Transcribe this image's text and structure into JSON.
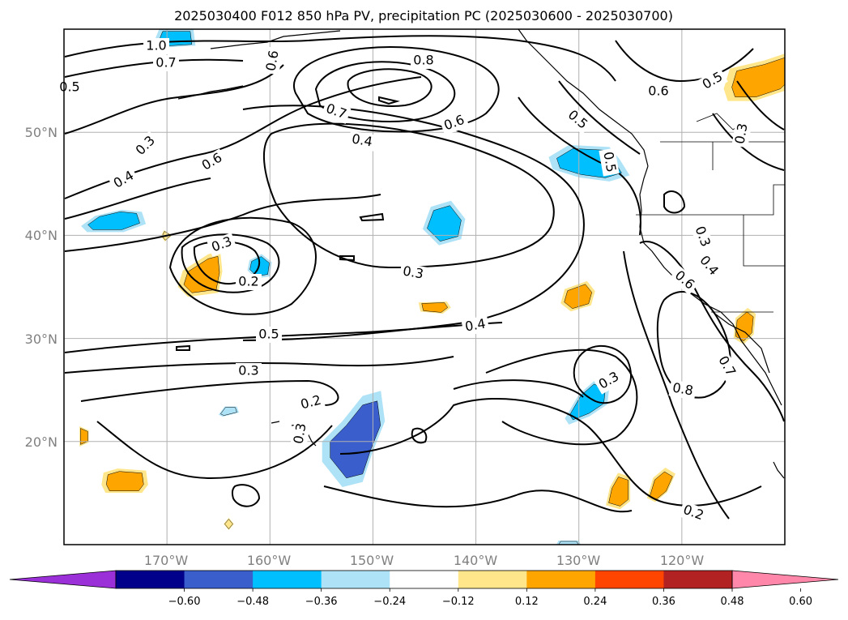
{
  "chart_data": {
    "type": "contour_map",
    "title": "2025030400 F012 850 hPa PV, precipitation PC (2025030600 - 2025030700)",
    "map": {
      "lon_range": [
        180,
        110
      ],
      "lat_range": [
        10,
        60
      ],
      "lon_ticks": [
        "170°W",
        "160°W",
        "150°W",
        "140°W",
        "130°W",
        "120°W"
      ],
      "lat_ticks": [
        "50°N",
        "40°N",
        "30°N",
        "20°N"
      ],
      "gridlines": true
    },
    "colorbar": {
      "ticks": [
        "−0.60",
        "−0.48",
        "−0.36",
        "−0.24",
        "−0.12",
        "0.12",
        "0.24",
        "0.36",
        "0.48",
        "0.60"
      ],
      "colors": [
        "#9b30d9",
        "#00008b",
        "#3a5fcd",
        "#00bfff",
        "#aee2f7",
        "#ffffff",
        "#ffe68a",
        "#ffa500",
        "#ff4500",
        "#b22222",
        "#ff88aa"
      ],
      "extend": "both"
    },
    "contour_labels": [
      "1.0",
      "0.7",
      "0.6",
      "0.5",
      "0.8",
      "0.7",
      "0.6",
      "0.5",
      "0.4",
      "0.3",
      "0.4",
      "0.6",
      "0.3",
      "0.2",
      "0.3",
      "0.5",
      "0.4",
      "0.3",
      "0.2",
      "0.3",
      "0.3",
      "0.3",
      "0.4",
      "0.6",
      "0.7",
      "0.8",
      "0.2",
      "0.6",
      "0.5",
      "0.3",
      "0.5"
    ],
    "shaded_regions": [
      {
        "lon": 166,
        "lat": 36,
        "value": 0.3
      },
      {
        "lon": 174,
        "lat": 16,
        "value": 0.3
      },
      {
        "lon": 178,
        "lat": 20.5,
        "value": 0.24
      },
      {
        "lon": 170,
        "lat": 40,
        "value": 0.18
      },
      {
        "lon": 144,
        "lat": 33,
        "value": 0.3
      },
      {
        "lon": 130,
        "lat": 34,
        "value": 0.3
      },
      {
        "lon": 126,
        "lat": 15,
        "value": 0.3
      },
      {
        "lon": 122,
        "lat": 15.5,
        "value": 0.3
      },
      {
        "lon": 114,
        "lat": 31,
        "value": 0.3
      },
      {
        "lon": 112,
        "lat": 55,
        "value": 0.3
      },
      {
        "lon": 164,
        "lat": 12,
        "value": 0.18
      },
      {
        "lon": 151,
        "lat": 20,
        "value": -0.45
      },
      {
        "lon": 143,
        "lat": 41,
        "value": -0.3
      },
      {
        "lon": 129,
        "lat": 47,
        "value": -0.3
      },
      {
        "lon": 175,
        "lat": 41.5,
        "value": -0.3
      },
      {
        "lon": 161,
        "lat": 37,
        "value": -0.3
      },
      {
        "lon": 129,
        "lat": 24,
        "value": -0.3
      },
      {
        "lon": 169,
        "lat": 59,
        "value": -0.3
      },
      {
        "lon": 164,
        "lat": 23,
        "value": -0.24
      },
      {
        "lon": 131,
        "lat": 10,
        "value": -0.24
      }
    ]
  }
}
